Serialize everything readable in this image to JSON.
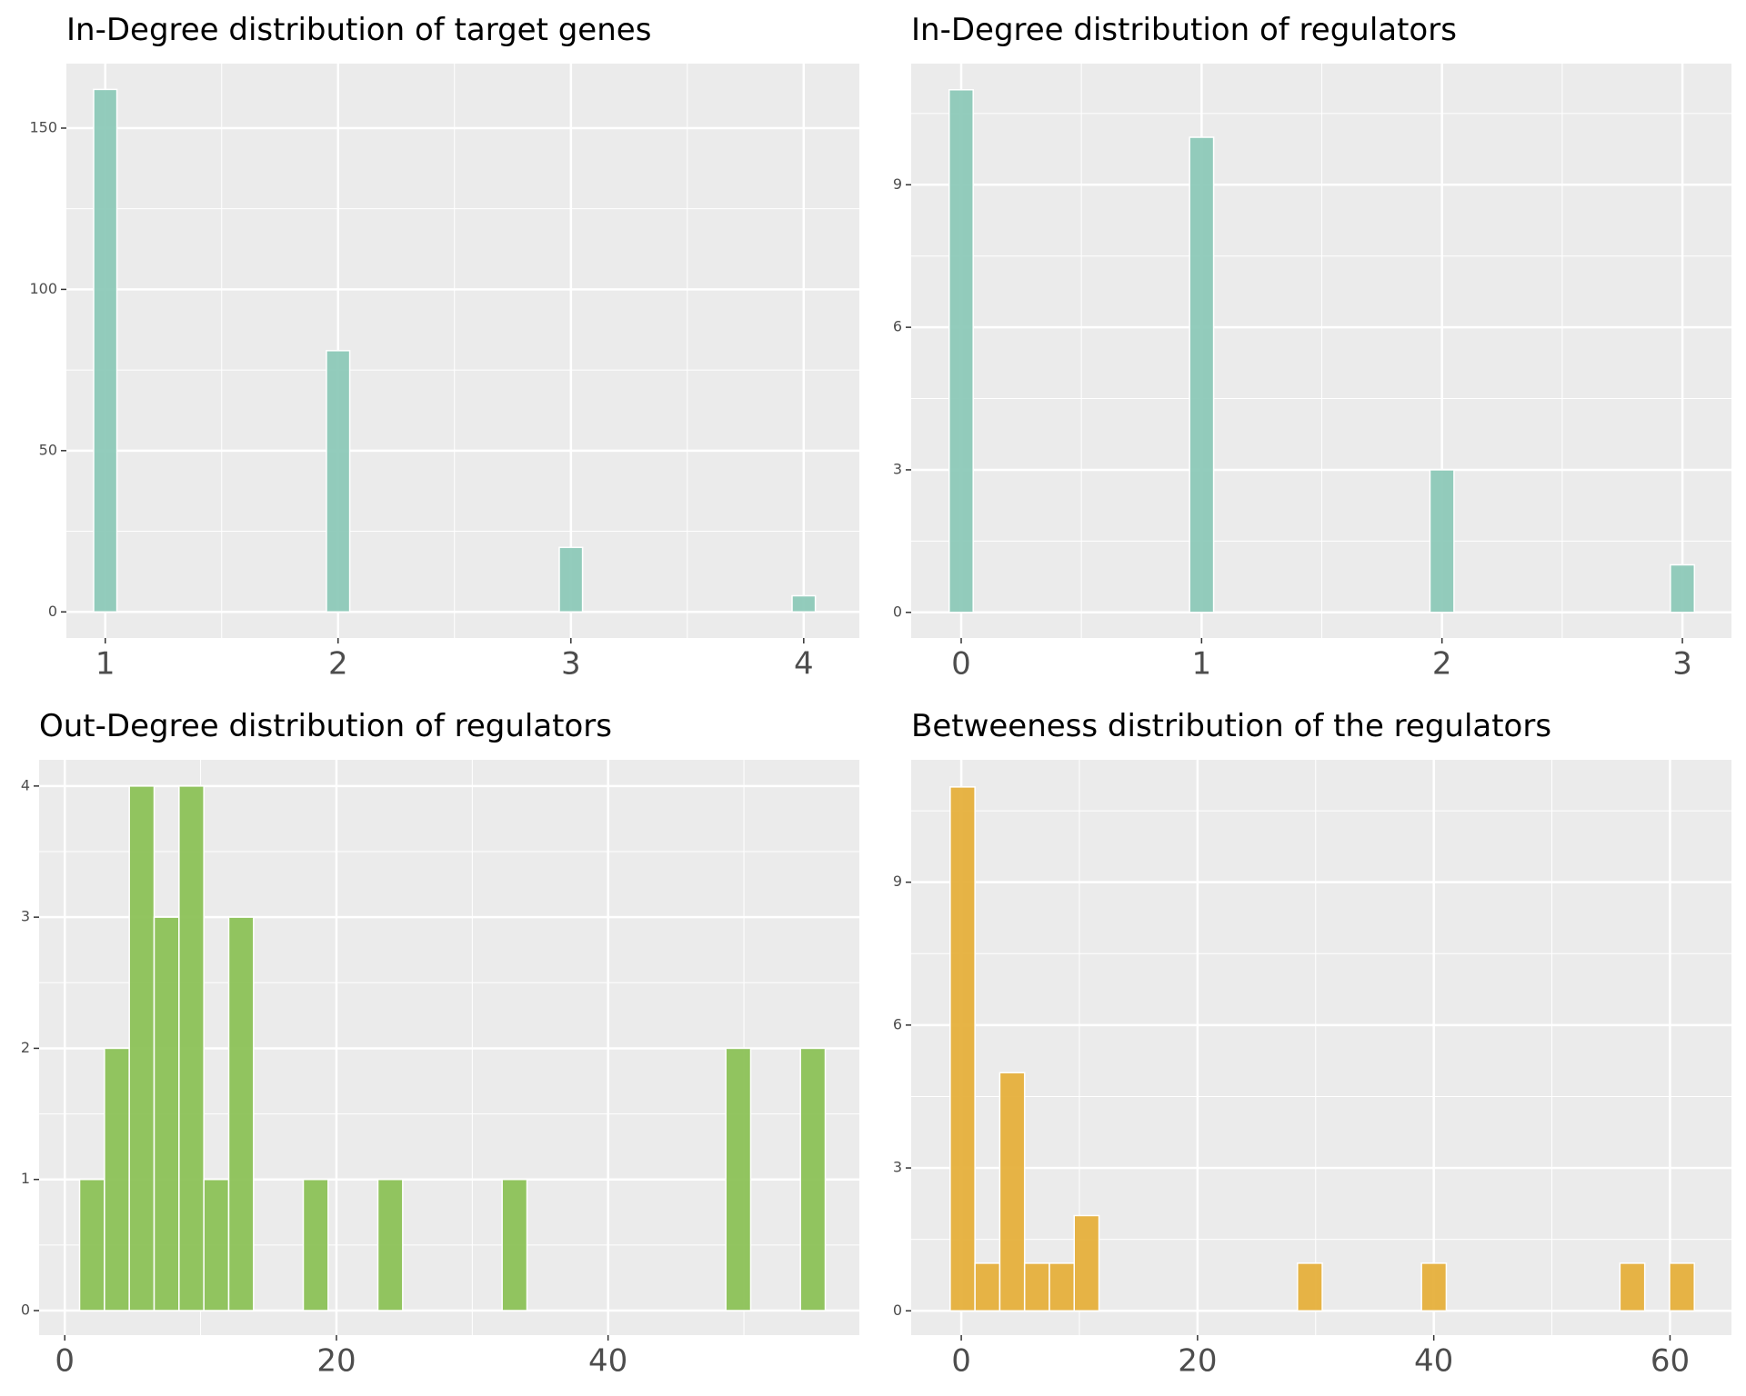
{
  "chart_data": [
    {
      "type": "histogram",
      "title": "In-Degree distribution of target genes",
      "color": "#8dc9b8",
      "bins": [
        0.95,
        1.05,
        1.15,
        1.25,
        1.35,
        1.45,
        1.55,
        1.65,
        1.75,
        1.85,
        1.95,
        2.05,
        2.15,
        2.25,
        2.35,
        2.45,
        2.55,
        2.65,
        2.75,
        2.85,
        2.95,
        3.05,
        3.15,
        3.25,
        3.35,
        3.45,
        3.55,
        3.65,
        3.75,
        3.85,
        3.95,
        4.05
      ],
      "counts": [
        162,
        0,
        0,
        0,
        0,
        0,
        0,
        0,
        0,
        0,
        81,
        0,
        0,
        0,
        0,
        0,
        0,
        0,
        0,
        0,
        20,
        0,
        0,
        0,
        0,
        0,
        0,
        0,
        0,
        0,
        5
      ],
      "xlim": [
        0.833,
        4.239
      ],
      "xticks": [
        1,
        2,
        3,
        4
      ],
      "x_minor_ticks": [
        1.5,
        2.5,
        3.5
      ],
      "ylim": [
        -8.1,
        170
      ],
      "yticks": [
        0,
        50,
        100,
        150
      ],
      "y_minor_ticks": [
        25,
        75,
        125
      ],
      "grid": true
    },
    {
      "type": "histogram",
      "title": "In-Degree distribution of regulators",
      "color": "#8dc9b8",
      "bins": [
        -0.05,
        0.05,
        0.15,
        0.25,
        0.35,
        0.45,
        0.55,
        0.65,
        0.75,
        0.85,
        0.95,
        1.05,
        1.15,
        1.25,
        1.35,
        1.45,
        1.55,
        1.65,
        1.75,
        1.85,
        1.95,
        2.05,
        2.15,
        2.25,
        2.35,
        2.45,
        2.55,
        2.65,
        2.75,
        2.85,
        2.95,
        3.05
      ],
      "counts": [
        11,
        0,
        0,
        0,
        0,
        0,
        0,
        0,
        0,
        0,
        10,
        0,
        0,
        0,
        0,
        0,
        0,
        0,
        0,
        0,
        3,
        0,
        0,
        0,
        0,
        0,
        0,
        0,
        0,
        0,
        1
      ],
      "xlim": [
        -0.208,
        3.204
      ],
      "xticks": [
        0,
        1,
        2,
        3
      ],
      "x_minor_ticks": [
        0.5,
        1.5,
        2.5
      ],
      "ylim": [
        -0.54,
        11.55
      ],
      "yticks": [
        0,
        3,
        6,
        9
      ],
      "y_minor_ticks": [
        1.5,
        4.5,
        7.5,
        10.5
      ],
      "grid": true
    },
    {
      "type": "histogram",
      "title": "Out-Degree distribution of regulators",
      "color": "#8cc257",
      "bins": [
        1.09,
        2.92,
        4.75,
        6.58,
        8.41,
        10.24,
        12.07,
        13.9,
        15.73,
        17.56,
        19.39,
        21.22,
        23.05,
        24.88,
        26.71,
        28.54,
        30.37,
        32.2,
        34.03,
        35.86,
        37.69,
        39.52,
        41.35,
        43.18,
        45.01,
        46.84,
        48.67,
        50.5,
        52.33,
        54.16,
        55.99
      ],
      "counts": [
        1,
        2,
        4,
        3,
        4,
        1,
        3,
        0,
        0,
        1,
        0,
        0,
        1,
        0,
        0,
        0,
        0,
        1,
        0,
        0,
        0,
        0,
        0,
        0,
        0,
        0,
        2,
        0,
        0,
        2
      ],
      "xlim": [
        -1.89,
        58.5
      ],
      "xticks": [
        0,
        20,
        40
      ],
      "x_minor_ticks": [
        10,
        30,
        50
      ],
      "ylim": [
        -0.187,
        4.2
      ],
      "yticks": [
        0,
        1,
        2,
        3,
        4
      ],
      "y_minor_ticks": [
        0.5,
        1.5,
        2.5,
        3.5
      ],
      "grid": true
    },
    {
      "type": "histogram",
      "title": "Betweeness distribution of the regulators",
      "color": "#e6b03c",
      "bins": [
        -0.94,
        1.16,
        3.26,
        5.36,
        7.46,
        9.56,
        11.66,
        13.76,
        15.86,
        17.96,
        20.06,
        22.16,
        24.26,
        26.36,
        28.46,
        30.56,
        32.66,
        34.76,
        36.86,
        38.96,
        41.06,
        43.16,
        45.26,
        47.36,
        49.46,
        51.56,
        53.66,
        55.76,
        57.86,
        59.96,
        62.06
      ],
      "counts": [
        11,
        1,
        5,
        1,
        1,
        2,
        0,
        0,
        0,
        0,
        0,
        0,
        0,
        0,
        1,
        0,
        0,
        0,
        0,
        1,
        0,
        0,
        0,
        0,
        0,
        0,
        0,
        1,
        0,
        1
      ],
      "xlim": [
        -4.24,
        65.2
      ],
      "xticks": [
        0,
        20,
        40,
        60
      ],
      "x_minor_ticks": [
        10,
        30,
        50
      ],
      "ylim": [
        -0.51,
        11.57
      ],
      "yticks": [
        0,
        3,
        6,
        9
      ],
      "y_minor_ticks": [
        1.5,
        4.5,
        7.5,
        10.5
      ],
      "grid": true
    }
  ]
}
